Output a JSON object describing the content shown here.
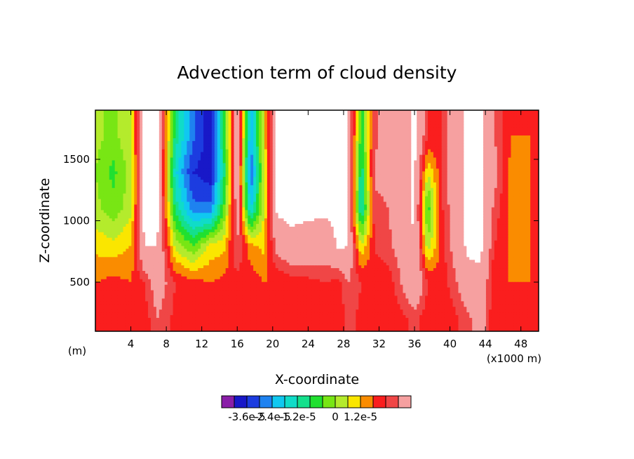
{
  "chart_data": {
    "type": "heatmap",
    "title": "Advection term of cloud density",
    "xlabel": "X-coordinate",
    "ylabel": "Z-coordinate",
    "x_unit": "(x1000 m)",
    "y_unit": "(m)",
    "xlim": [
      0,
      50
    ],
    "ylim": [
      100,
      1900
    ],
    "xticks": [
      4,
      8,
      12,
      16,
      20,
      24,
      28,
      32,
      36,
      40,
      44,
      48
    ],
    "yticks": [
      500,
      1000,
      1500
    ],
    "colorbar": {
      "levels": [
        "-3.6e-5",
        "-2.4e-5",
        "-1.2e-5",
        "0",
        "1.2e-5"
      ],
      "colors": [
        "#8a1ea8",
        "#1818c8",
        "#1c3ce0",
        "#1e82f0",
        "#10c8f0",
        "#10dcc8",
        "#14e08c",
        "#20e030",
        "#78e614",
        "#b4eb2c",
        "#fae600",
        "#fa8c00",
        "#fa1e1e",
        "#f04646",
        "#f6a0a0"
      ]
    },
    "x": [
      0,
      2,
      4,
      5.5,
      7,
      9,
      11,
      13,
      14.5,
      16,
      17.5,
      19,
      20.5,
      22,
      24,
      26,
      27.5,
      28.5,
      30,
      31.5,
      33,
      34.5,
      36,
      37.5,
      39,
      40.5,
      42,
      43.5,
      45,
      47,
      49
    ],
    "y": [
      200,
      500,
      800,
      1100,
      1400,
      1700
    ],
    "z": [
      [
        0,
        0.1,
        0,
        0.1,
        0.6,
        0.2,
        0.1,
        0.1,
        0.1,
        0.2,
        0.2,
        0,
        0,
        0,
        0,
        0,
        0.1,
        0.4,
        0.2,
        0.1,
        0,
        0.2,
        0.4,
        0.1,
        0,
        0.2,
        0.5,
        0.9,
        0,
        0,
        0
      ],
      [
        0,
        0.1,
        0,
        0.3,
        0.9,
        0.3,
        0.1,
        0,
        0.1,
        0.2,
        0.2,
        0,
        0,
        0.1,
        0.2,
        0.3,
        0.2,
        0.6,
        0.3,
        0.2,
        0.1,
        0.6,
        1.2,
        0.3,
        0.1,
        0.5,
        1.0,
        1.1,
        0,
        0,
        0
      ],
      [
        -0.4,
        -0.5,
        -0.3,
        1.2,
        1.2,
        -0.7,
        -1.2,
        -0.5,
        -0.4,
        0.6,
        -0.2,
        -0.4,
        0.8,
        1.1,
        1.0,
        0.9,
        1.3,
        1.2,
        -0.6,
        0.3,
        0.5,
        0.8,
        1.2,
        -0.8,
        0.1,
        0.8,
        1.3,
        1.3,
        0.3,
        -0.1,
        0
      ],
      [
        -0.8,
        -1.1,
        -0.7,
        1.3,
        1.3,
        -1.6,
        -2.6,
        -2.6,
        -1.2,
        0.9,
        -2.2,
        -0.6,
        1.3,
        1.3,
        1.3,
        1.3,
        1.3,
        1.3,
        -2.0,
        0.5,
        0.6,
        0.9,
        1.3,
        -1.4,
        0.2,
        0.9,
        1.3,
        1.3,
        0.5,
        -0.2,
        0
      ],
      [
        -0.9,
        -1.3,
        -0.8,
        1.3,
        1.3,
        -2.0,
        -3.0,
        -3.2,
        -1.6,
        1.0,
        -2.8,
        -0.7,
        1.3,
        1.3,
        1.3,
        1.3,
        1.3,
        1.3,
        -1.8,
        0.7,
        0.7,
        0.9,
        1.3,
        -0.6,
        0.2,
        1.0,
        1.3,
        1.3,
        0.8,
        -0.2,
        0
      ],
      [
        -0.8,
        -1.0,
        -0.6,
        1.3,
        1.3,
        -1.6,
        -2.6,
        -3.2,
        -1.4,
        1.1,
        -2.4,
        -0.5,
        1.3,
        1.3,
        1.3,
        1.3,
        1.3,
        1.3,
        -1.4,
        0.5,
        0.8,
        1.0,
        1.3,
        0.3,
        0.2,
        1.0,
        1.3,
        1.3,
        0.6,
        0,
        0
      ]
    ]
  }
}
